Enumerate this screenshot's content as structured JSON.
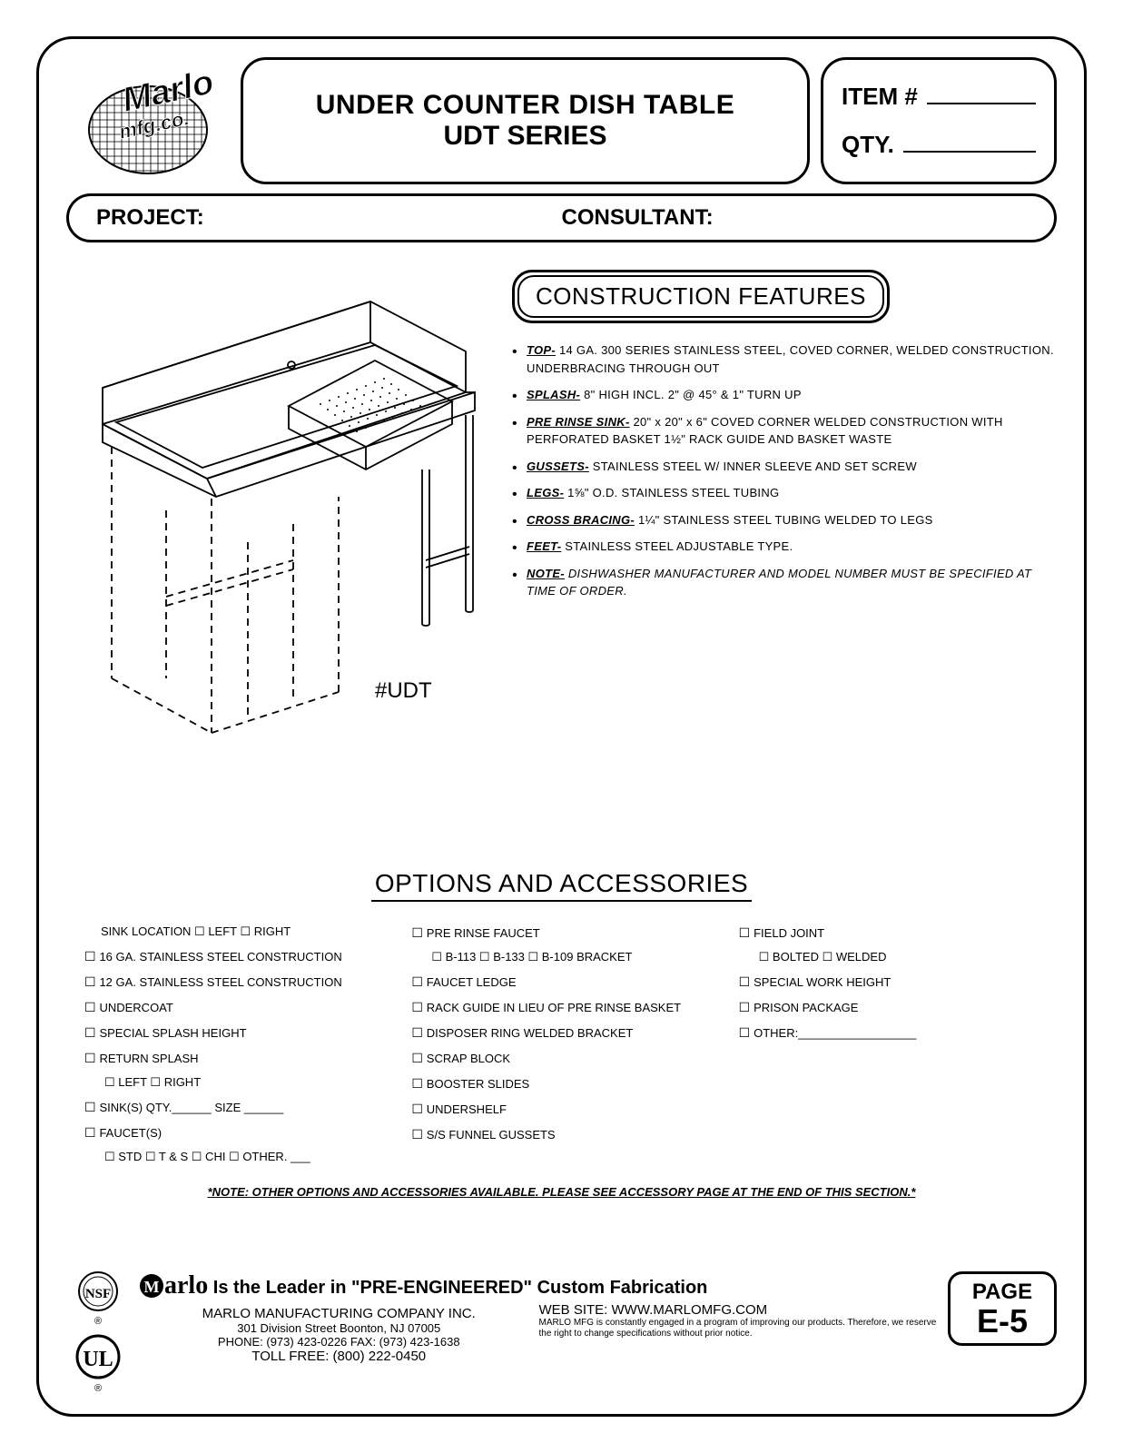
{
  "header": {
    "logo_text_top": "Marlo",
    "logo_text_bottom": "mfg.co.",
    "title_main": "UNDER COUNTER DISH TABLE",
    "title_sub": "UDT SERIES",
    "item_label": "ITEM #",
    "qty_label": "QTY.",
    "project_label": "PROJECT:",
    "consultant_label": "CONSULTANT:"
  },
  "drawing": {
    "model_label": "#UDT"
  },
  "construction": {
    "heading": "CONSTRUCTION FEATURES",
    "features": [
      {
        "label": "TOP-",
        "text": " 14 GA. 300 SERIES STAINLESS STEEL, COVED CORNER, WELDED CONSTRUCTION. UNDERBRACING THROUGH OUT"
      },
      {
        "label": "SPLASH-",
        "text": "  8\" HIGH INCL. 2\" @ 45° & 1\" TURN UP"
      },
      {
        "label": "PRE RINSE SINK-",
        "text": "  20\" x 20\" x 6\" COVED CORNER WELDED CONSTRUCTION WITH PERFORATED BASKET 1½\" RACK GUIDE AND BASKET WASTE"
      },
      {
        "label": "GUSSETS-",
        "text": "  STAINLESS STEEL W/ INNER SLEEVE AND SET SCREW"
      },
      {
        "label": "LEGS-",
        "text": "  1⅝\" O.D. STAINLESS STEEL TUBING"
      },
      {
        "label": "CROSS BRACING-",
        "text": " 1¼\" STAINLESS STEEL TUBING WELDED TO LEGS"
      },
      {
        "label": "FEET-",
        "text": " STAINLESS STEEL ADJUSTABLE TYPE."
      },
      {
        "label": "NOTE-",
        "text": " DISHWASHER MANUFACTURER AND MODEL NUMBER MUST BE SPECIFIED AT TIME OF ORDER.",
        "italic": true
      }
    ]
  },
  "options": {
    "heading": "OPTIONS AND ACCESSORIES",
    "col1": [
      {
        "text": "SINK LOCATION  ☐ LEFT  ☐ RIGHT",
        "nocheck": true,
        "indent": true
      },
      {
        "text": "16 GA. STAINLESS STEEL CONSTRUCTION"
      },
      {
        "text": "12 GA. STAINLESS STEEL CONSTRUCTION"
      },
      {
        "text": "UNDERCOAT"
      },
      {
        "text": "SPECIAL SPLASH HEIGHT"
      },
      {
        "text": "RETURN SPLASH"
      },
      {
        "text": "☐ LEFT     ☐ RIGHT",
        "nocheck": true,
        "sub": true
      },
      {
        "text": "SINK(S) QTY.______ SIZE ______"
      },
      {
        "text": "FAUCET(S)"
      },
      {
        "text": "☐ STD  ☐ T & S  ☐ CHI  ☐ OTHER. ___",
        "nocheck": true,
        "sub": true
      }
    ],
    "col2": [
      {
        "text": "PRE RINSE FAUCET"
      },
      {
        "text": "☐ B-113  ☐ B-133  ☐ B-109 BRACKET",
        "nocheck": true,
        "sub": true
      },
      {
        "text": "FAUCET LEDGE"
      },
      {
        "text": "RACK GUIDE IN LIEU OF PRE RINSE BASKET"
      },
      {
        "text": "DISPOSER RING WELDED BRACKET"
      },
      {
        "text": "SCRAP BLOCK"
      },
      {
        "text": "BOOSTER SLIDES"
      },
      {
        "text": "UNDERSHELF"
      },
      {
        "text": "S/S FUNNEL GUSSETS"
      }
    ],
    "col3": [
      {
        "text": "FIELD JOINT"
      },
      {
        "text": "☐ BOLTED  ☐ WELDED",
        "nocheck": true,
        "sub": true
      },
      {
        "text": "SPECIAL WORK HEIGHT"
      },
      {
        "text": "PRISON PACKAGE"
      },
      {
        "text": " ",
        "nocheck": true
      },
      {
        "text": "OTHER:__________________"
      }
    ],
    "note": "*NOTE: OTHER OPTIONS AND ACCESSORIES AVAILABLE. PLEASE SEE ACCESSORY PAGE AT THE END OF THIS SECTION.*"
  },
  "footer": {
    "tagline_brand": "Marlo",
    "tagline_text": " Is the Leader in \"PRE-ENGINEERED\" Custom Fabrication",
    "company": "MARLO MANUFACTURING COMPANY INC.",
    "address": "301 Division Street    Boonton, NJ 07005",
    "phone": "PHONE: (973) 423-0226  FAX: (973) 423-1638",
    "tollfree": "TOLL FREE: (800) 222-0450",
    "website": "WEB SITE: WWW.MARLOMFG.COM",
    "disclaimer": "MARLO MFG is constantly engaged in a program of  improving our products. Therefore, we reserve the right to change specifications without prior notice.",
    "page_label": "PAGE",
    "page_num": "E-5"
  }
}
